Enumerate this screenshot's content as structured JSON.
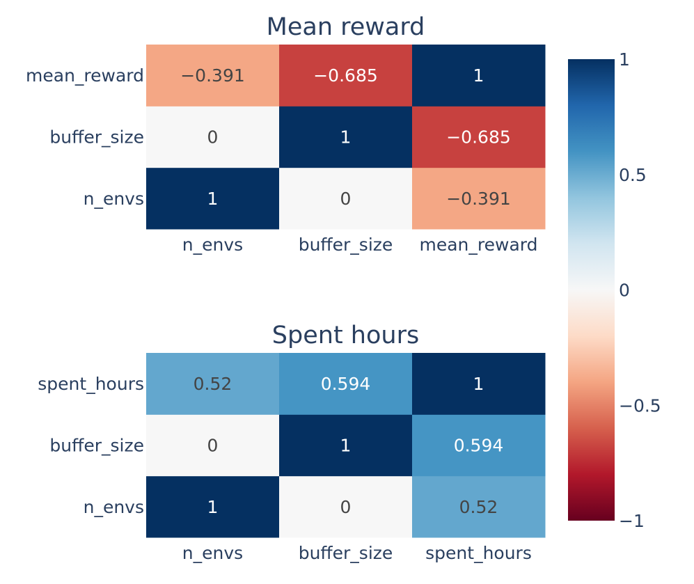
{
  "chart_data": [
    {
      "type": "heatmap",
      "title": "Mean reward",
      "x_categories": [
        "n_envs",
        "buffer_size",
        "mean_reward"
      ],
      "y_categories": [
        "n_envs",
        "buffer_size",
        "mean_reward"
      ],
      "z": [
        [
          1,
          0,
          -0.391
        ],
        [
          0,
          1,
          -0.685
        ],
        [
          -0.391,
          -0.685,
          1
        ]
      ],
      "z_labels": [
        [
          "1",
          "0",
          "−0.391"
        ],
        [
          "0",
          "1",
          "−0.685"
        ],
        [
          "−0.391",
          "−0.685",
          "1"
        ]
      ],
      "zlim": [
        -1,
        1
      ],
      "colorscale": "RdBu"
    },
    {
      "type": "heatmap",
      "title": "Spent hours",
      "x_categories": [
        "n_envs",
        "buffer_size",
        "spent_hours"
      ],
      "y_categories": [
        "n_envs",
        "buffer_size",
        "spent_hours"
      ],
      "z": [
        [
          1,
          0,
          0.52
        ],
        [
          0,
          1,
          0.594
        ],
        [
          0.52,
          0.594,
          1
        ]
      ],
      "z_labels": [
        [
          "1",
          "0",
          "0.52"
        ],
        [
          "0",
          "1",
          "0.594"
        ],
        [
          "0.52",
          "0.594",
          "1"
        ]
      ],
      "zlim": [
        -1,
        1
      ],
      "colorscale": "RdBu"
    }
  ],
  "colorbar": {
    "ticks": [
      1,
      0.5,
      0,
      -0.5,
      -1
    ],
    "tick_labels": [
      "1",
      "0.5",
      "0",
      "−0.5",
      "−1"
    ],
    "range": [
      -1,
      1
    ]
  },
  "colorscale_stops": [
    [
      0.0,
      "#67001f"
    ],
    [
      0.1,
      "#b2182b"
    ],
    [
      0.2,
      "#d6604d"
    ],
    [
      0.3,
      "#f4a582"
    ],
    [
      0.4,
      "#fddbc7"
    ],
    [
      0.5,
      "#f7f7f7"
    ],
    [
      0.6,
      "#d1e5f0"
    ],
    [
      0.7,
      "#92c5de"
    ],
    [
      0.8,
      "#4393c3"
    ],
    [
      0.9,
      "#2166ac"
    ],
    [
      1.0,
      "#053061"
    ]
  ]
}
